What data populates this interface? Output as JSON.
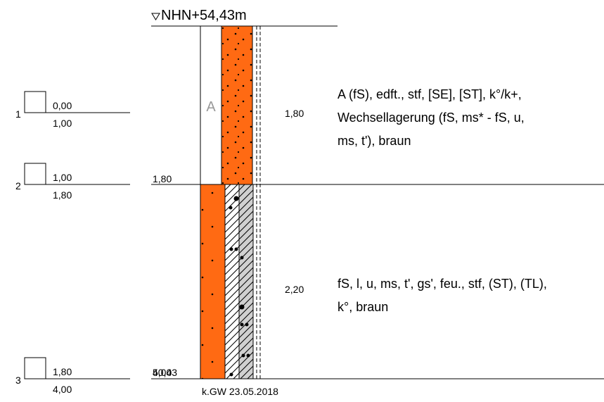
{
  "header": {
    "elevation": "NHN+54,43m"
  },
  "samples": [
    {
      "number": "1",
      "top": "0,00",
      "bottom": "1,00"
    },
    {
      "number": "2",
      "top": "1,00",
      "bottom": "1,80"
    },
    {
      "number": "3",
      "top": "1,80",
      "bottom": "4,00"
    }
  ],
  "layers": [
    {
      "code": "A",
      "depth": "1,80",
      "thickness": "1,80",
      "description": [
        "A (fS), edft., stf, [SE], [ST], k°/k+,",
        "Wechsellagerung (fS, ms* - fS, u,",
        "ms, t'), braun"
      ]
    },
    {
      "depth": "4,00",
      "thickness": "2,20",
      "description": [
        "fS, l, u, ms, t', gs', feu., stf, (ST), (TL),",
        "k°, braun"
      ]
    }
  ],
  "footer": {
    "final_elevation": "50,43",
    "groundwater": "k.GW 23.05.2018"
  }
}
